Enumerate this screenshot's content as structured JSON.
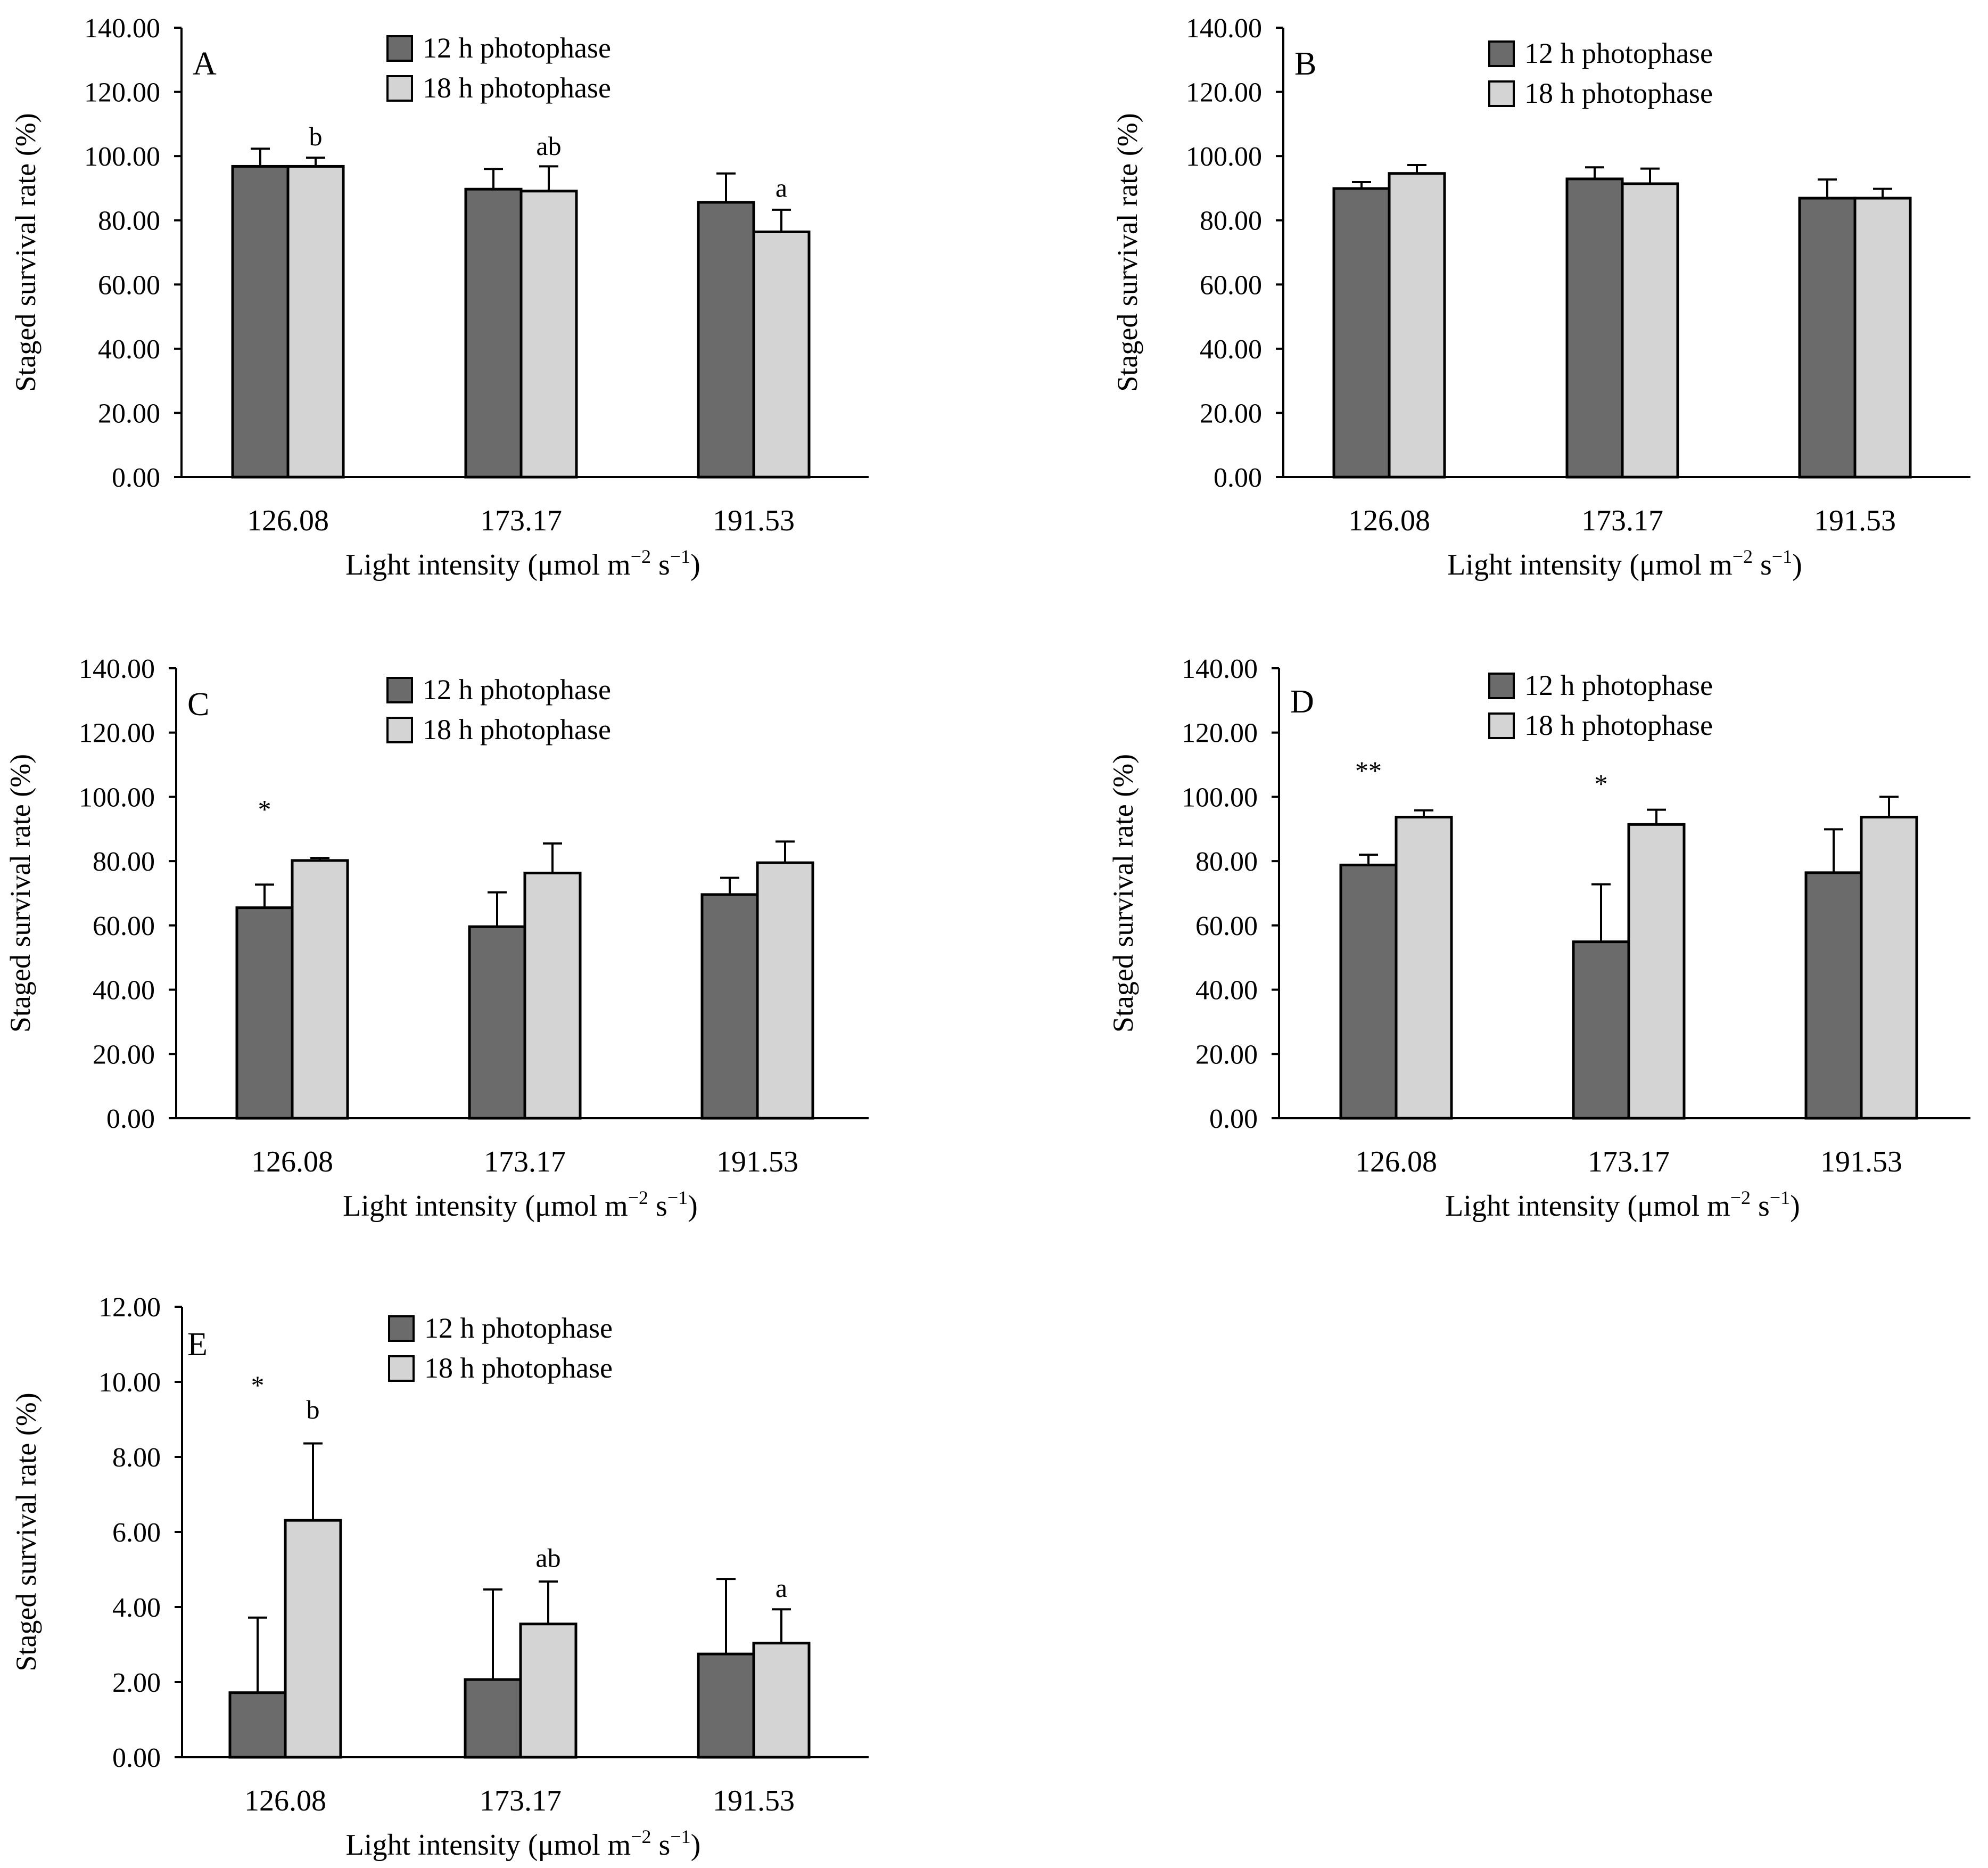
{
  "figure": {
    "colors": {
      "series1": "#6b6b6b",
      "series2": "#d4d4d4",
      "stroke": "#000000",
      "background": "#ffffff"
    },
    "legend_labels": [
      "12 h photophase",
      "18 h photophase"
    ],
    "xlabel_main": "Light intensity (μmol m",
    "xlabel_sup1": "−2",
    "xlabel_mid": " s",
    "xlabel_sup2": "−1",
    "xlabel_end": ")",
    "ylabel": "Staged survival rate (%)"
  },
  "chart_data": [
    {
      "type": "bar",
      "panel": "A",
      "categories": [
        "126.08",
        "173.17",
        "191.53"
      ],
      "ylim": [
        0,
        140
      ],
      "yticks": [
        "0.00",
        "20.00",
        "40.00",
        "60.00",
        "80.00",
        "100.00",
        "120.00",
        "140.00"
      ],
      "series": [
        {
          "name": "12 h photophase",
          "values": [
            96.8,
            89.7,
            85.6
          ],
          "errors": [
            5.5,
            6.3,
            9.0
          ]
        },
        {
          "name": "18 h photophase",
          "values": [
            96.8,
            89.1,
            76.4
          ],
          "errors": [
            2.7,
            7.7,
            6.9
          ]
        }
      ],
      "annotations": [
        {
          "category": 0,
          "series": 1,
          "text": "b",
          "at": 106
        },
        {
          "category": 1,
          "series": 1,
          "text": "ab",
          "at": 103
        },
        {
          "category": 2,
          "series": 1,
          "text": "a",
          "at": 90
        }
      ]
    },
    {
      "type": "bar",
      "panel": "B",
      "categories": [
        "126.08",
        "173.17",
        "191.53"
      ],
      "ylim": [
        0,
        140
      ],
      "yticks": [
        "0.00",
        "20.00",
        "40.00",
        "60.00",
        "80.00",
        "100.00",
        "120.00",
        "140.00"
      ],
      "series": [
        {
          "name": "12 h photophase",
          "values": [
            89.9,
            92.9,
            86.9
          ],
          "errors": [
            2.0,
            3.6,
            5.8
          ]
        },
        {
          "name": "18 h photophase",
          "values": [
            94.6,
            91.4,
            86.9
          ],
          "errors": [
            2.6,
            4.7,
            2.9
          ]
        }
      ],
      "annotations": []
    },
    {
      "type": "bar",
      "panel": "C",
      "categories": [
        "126.08",
        "173.17",
        "191.53"
      ],
      "ylim": [
        0,
        140
      ],
      "yticks": [
        "0.00",
        "20.00",
        "40.00",
        "60.00",
        "80.00",
        "100.00",
        "120.00",
        "140.00"
      ],
      "series": [
        {
          "name": "12 h photophase",
          "values": [
            65.5,
            59.6,
            69.6
          ],
          "errors": [
            7.2,
            10.7,
            5.2
          ]
        },
        {
          "name": "18 h photophase",
          "values": [
            80.2,
            76.3,
            79.5
          ],
          "errors": [
            0.8,
            9.2,
            6.6
          ]
        }
      ],
      "annotations": [
        {
          "category": 0,
          "series": 0,
          "text": "*",
          "at": 96
        }
      ]
    },
    {
      "type": "bar",
      "panel": "D",
      "categories": [
        "126.08",
        "173.17",
        "191.53"
      ],
      "ylim": [
        0,
        140
      ],
      "yticks": [
        "0.00",
        "20.00",
        "40.00",
        "60.00",
        "80.00",
        "100.00",
        "120.00",
        "140.00"
      ],
      "series": [
        {
          "name": "12 h photophase",
          "values": [
            78.8,
            54.9,
            76.4
          ],
          "errors": [
            3.2,
            17.9,
            13.5
          ]
        },
        {
          "name": "18 h photophase",
          "values": [
            93.7,
            91.4,
            93.7
          ],
          "errors": [
            2.1,
            4.6,
            6.3
          ]
        }
      ],
      "annotations": [
        {
          "category": 0,
          "series": 0,
          "text": "**",
          "at": 108
        },
        {
          "category": 1,
          "series": 0,
          "text": "*",
          "at": 104
        }
      ]
    },
    {
      "type": "bar",
      "panel": "E",
      "categories": [
        "126.08",
        "173.17",
        "191.53"
      ],
      "ylim": [
        0,
        12
      ],
      "yticks": [
        "0.00",
        "2.00",
        "4.00",
        "6.00",
        "8.00",
        "10.00",
        "12.00"
      ],
      "series": [
        {
          "name": "12 h photophase",
          "values": [
            1.72,
            2.07,
            2.75
          ],
          "errors": [
            2.0,
            2.4,
            2.0
          ]
        },
        {
          "name": "18 h photophase",
          "values": [
            6.31,
            3.55,
            3.04
          ],
          "errors": [
            2.05,
            1.13,
            0.9
          ]
        }
      ],
      "annotations": [
        {
          "category": 0,
          "series": 0,
          "text": "*",
          "at": 9.9
        },
        {
          "category": 0,
          "series": 1,
          "text": "b",
          "at": 9.25
        },
        {
          "category": 1,
          "series": 1,
          "text": "ab",
          "at": 5.3
        },
        {
          "category": 2,
          "series": 1,
          "text": "a",
          "at": 4.5
        }
      ]
    }
  ]
}
